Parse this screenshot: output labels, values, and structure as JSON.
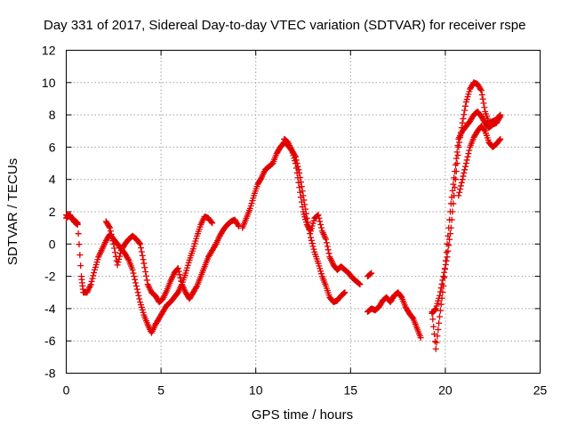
{
  "chart_data": {
    "type": "scatter",
    "title": "Day 331 of 2017, Sidereal Day-to-day VTEC variation (SDTVAR) for receiver rspe",
    "xlabel": "GPS time / hours",
    "ylabel": "SDTVAR / TECUs",
    "xlim": [
      0,
      25
    ],
    "ylim": [
      -8,
      12
    ],
    "xticks": [
      0,
      5,
      10,
      15,
      20,
      25
    ],
    "yticks": [
      -8,
      -6,
      -4,
      -2,
      0,
      2,
      4,
      6,
      8,
      10,
      12
    ],
    "grid": true,
    "marker": "plus",
    "color": "#e00000",
    "series": [
      {
        "points": [
          [
            0.0,
            1.8
          ],
          [
            0.2,
            1.7
          ],
          [
            0.4,
            1.5
          ],
          [
            0.6,
            1.3
          ],
          [
            0.8,
            -2.0
          ],
          [
            0.9,
            -3.0
          ],
          [
            1.1,
            -3.0
          ],
          [
            1.3,
            -2.5
          ],
          [
            1.5,
            -1.6
          ],
          [
            1.7,
            -0.8
          ],
          [
            1.9,
            -0.3
          ],
          [
            2.1,
            0.2
          ],
          [
            2.3,
            0.6
          ],
          [
            2.5,
            0.3
          ],
          [
            2.7,
            0.0
          ],
          [
            2.9,
            -0.3
          ],
          [
            3.1,
            -0.6
          ],
          [
            3.3,
            -1.0
          ],
          [
            3.5,
            -1.6
          ],
          [
            3.7,
            -2.6
          ],
          [
            3.9,
            -3.6
          ],
          [
            4.1,
            -4.4
          ],
          [
            4.3,
            -5.0
          ],
          [
            4.5,
            -5.5
          ],
          [
            4.7,
            -5.0
          ],
          [
            4.9,
            -4.6
          ],
          [
            5.1,
            -4.2
          ],
          [
            5.3,
            -3.8
          ],
          [
            5.5,
            -3.6
          ],
          [
            5.7,
            -3.3
          ],
          [
            5.9,
            -3.0
          ],
          [
            6.1,
            -2.5
          ],
          [
            6.3,
            -1.8
          ],
          [
            6.5,
            -1.0
          ],
          [
            6.7,
            -0.3
          ],
          [
            6.9,
            0.5
          ],
          [
            7.1,
            1.2
          ],
          [
            7.3,
            1.7
          ],
          [
            7.5,
            1.6
          ],
          [
            7.7,
            1.3
          ],
          [
            9.3,
            1.0
          ],
          [
            9.5,
            1.6
          ],
          [
            9.7,
            2.2
          ],
          [
            9.9,
            3.0
          ],
          [
            10.1,
            3.7
          ],
          [
            10.3,
            4.1
          ],
          [
            10.5,
            4.6
          ],
          [
            10.7,
            4.8
          ],
          [
            10.9,
            5.0
          ],
          [
            11.1,
            5.6
          ],
          [
            11.3,
            6.0
          ],
          [
            11.5,
            6.3
          ],
          [
            11.7,
            6.1
          ],
          [
            11.9,
            5.8
          ],
          [
            12.1,
            5.4
          ],
          [
            12.3,
            4.4
          ],
          [
            12.5,
            3.0
          ],
          [
            12.7,
            1.6
          ],
          [
            12.9,
            0.4
          ],
          [
            13.1,
            -0.5
          ],
          [
            13.3,
            -1.2
          ],
          [
            13.5,
            -2.0
          ],
          [
            13.7,
            -2.6
          ],
          [
            13.9,
            -3.3
          ],
          [
            14.1,
            -3.6
          ],
          [
            14.3,
            -3.5
          ],
          [
            14.5,
            -3.2
          ],
          [
            14.7,
            -3.0
          ],
          [
            15.9,
            -2.0
          ],
          [
            16.1,
            -1.8
          ],
          [
            15.9,
            -4.2
          ],
          [
            16.1,
            -4.0
          ],
          [
            16.3,
            -4.1
          ],
          [
            16.5,
            -3.9
          ],
          [
            16.7,
            -3.5
          ],
          [
            16.9,
            -3.3
          ],
          [
            17.1,
            -3.6
          ],
          [
            17.3,
            -3.2
          ],
          [
            17.5,
            -3.0
          ],
          [
            17.7,
            -3.3
          ],
          [
            17.9,
            -3.9
          ],
          [
            18.1,
            -4.3
          ],
          [
            18.3,
            -4.6
          ],
          [
            18.5,
            -5.2
          ],
          [
            18.7,
            -5.8
          ],
          [
            19.3,
            -4.3
          ],
          [
            19.5,
            -4.0
          ],
          [
            19.7,
            -3.2
          ],
          [
            19.9,
            -2.0
          ],
          [
            20.1,
            -0.8
          ],
          [
            20.3,
            1.0
          ],
          [
            20.5,
            3.5
          ],
          [
            20.7,
            6.0
          ],
          [
            20.9,
            7.5
          ],
          [
            21.1,
            8.8
          ],
          [
            21.3,
            9.6
          ],
          [
            21.5,
            10.0
          ],
          [
            21.7,
            9.9
          ],
          [
            21.9,
            9.5
          ],
          [
            22.1,
            8.2
          ],
          [
            22.3,
            7.5
          ],
          [
            22.5,
            7.6
          ],
          [
            22.7,
            7.7
          ],
          [
            22.9,
            8.0
          ]
        ]
      },
      {
        "points": [
          [
            0.0,
            1.6
          ],
          [
            0.2,
            1.8
          ],
          [
            0.4,
            1.4
          ],
          [
            0.6,
            1.2
          ],
          [
            2.1,
            1.4
          ],
          [
            2.3,
            1.0
          ],
          [
            2.5,
            0.0
          ],
          [
            2.7,
            -1.3
          ],
          [
            2.9,
            -0.4
          ],
          [
            3.1,
            0.0
          ],
          [
            3.3,
            0.3
          ],
          [
            3.5,
            0.5
          ],
          [
            3.7,
            0.3
          ],
          [
            3.9,
            0.0
          ],
          [
            4.1,
            -1.2
          ],
          [
            4.3,
            -2.5
          ],
          [
            4.5,
            -3.0
          ],
          [
            4.7,
            -3.2
          ],
          [
            4.9,
            -3.6
          ],
          [
            5.1,
            -3.4
          ],
          [
            5.3,
            -2.9
          ],
          [
            5.5,
            -2.3
          ],
          [
            5.7,
            -1.8
          ],
          [
            5.9,
            -1.5
          ],
          [
            6.1,
            -2.5
          ],
          [
            6.3,
            -3.0
          ],
          [
            6.5,
            -3.4
          ],
          [
            6.7,
            -3.0
          ],
          [
            6.9,
            -2.6
          ],
          [
            7.1,
            -2.0
          ],
          [
            7.3,
            -1.4
          ],
          [
            7.5,
            -0.8
          ],
          [
            7.7,
            -0.4
          ],
          [
            7.9,
            0.0
          ],
          [
            8.1,
            0.5
          ],
          [
            8.3,
            0.9
          ],
          [
            8.5,
            1.2
          ],
          [
            8.7,
            1.4
          ],
          [
            8.9,
            1.5
          ],
          [
            9.1,
            1.1
          ],
          [
            11.5,
            6.5
          ],
          [
            11.7,
            6.3
          ],
          [
            11.9,
            5.8
          ],
          [
            12.1,
            5.0
          ],
          [
            12.3,
            3.5
          ],
          [
            12.5,
            2.0
          ],
          [
            12.7,
            1.2
          ],
          [
            12.9,
            0.8
          ],
          [
            13.1,
            1.6
          ],
          [
            13.3,
            1.8
          ],
          [
            13.5,
            0.8
          ],
          [
            13.7,
            0.3
          ],
          [
            13.9,
            -0.8
          ],
          [
            14.1,
            -1.3
          ],
          [
            14.3,
            -1.6
          ],
          [
            14.5,
            -1.4
          ],
          [
            14.7,
            -1.6
          ],
          [
            14.9,
            -1.8
          ],
          [
            15.1,
            -2.1
          ],
          [
            15.3,
            -2.3
          ],
          [
            15.5,
            -2.5
          ],
          [
            19.3,
            -4.2
          ],
          [
            19.5,
            -6.5
          ],
          [
            19.7,
            -4.5
          ],
          [
            19.9,
            -2.6
          ],
          [
            20.1,
            0.0
          ],
          [
            20.3,
            2.5
          ],
          [
            20.5,
            4.5
          ],
          [
            20.7,
            6.5
          ],
          [
            20.9,
            7.0
          ],
          [
            21.1,
            7.3
          ],
          [
            21.3,
            7.6
          ],
          [
            21.5,
            8.0
          ],
          [
            21.7,
            8.2
          ],
          [
            21.9,
            7.9
          ],
          [
            22.1,
            7.5
          ],
          [
            22.3,
            7.2
          ],
          [
            22.5,
            7.4
          ],
          [
            22.7,
            7.5
          ],
          [
            22.9,
            7.9
          ],
          [
            20.7,
            3.0
          ],
          [
            20.9,
            4.0
          ],
          [
            21.1,
            5.0
          ],
          [
            21.3,
            6.0
          ],
          [
            21.5,
            6.6
          ],
          [
            21.7,
            7.0
          ],
          [
            21.9,
            7.3
          ],
          [
            22.1,
            7.0
          ],
          [
            22.3,
            6.3
          ],
          [
            22.5,
            6.0
          ],
          [
            22.7,
            6.2
          ],
          [
            22.9,
            6.5
          ]
        ]
      }
    ]
  }
}
